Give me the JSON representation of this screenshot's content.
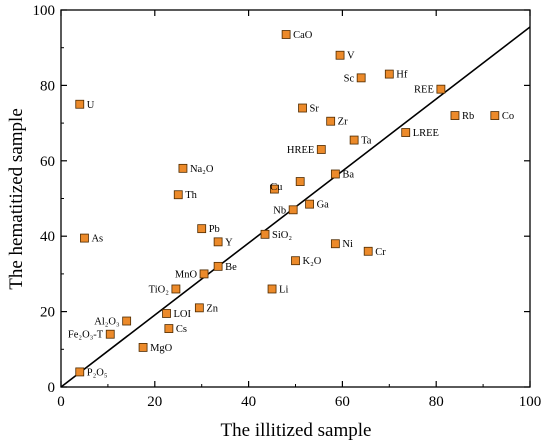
{
  "chart_data": {
    "type": "scatter",
    "xlabel": "The illitized sample",
    "ylabel": "The hematitized sample",
    "xlim": [
      0,
      100
    ],
    "ylim": [
      0,
      100
    ],
    "xticks": [
      0,
      20,
      40,
      60,
      80,
      100
    ],
    "yticks": [
      0,
      20,
      40,
      60,
      80,
      100
    ],
    "grid": false,
    "marker_color": "#ec8a2a",
    "marker_edge": "#4d2a00",
    "reference_line": {
      "from": [
        0,
        0
      ],
      "to": [
        100,
        95.5
      ]
    },
    "points": [
      {
        "name": "CaO",
        "x": 48,
        "y": 93.5,
        "label_pos": "right"
      },
      {
        "name": "V",
        "x": 59.5,
        "y": 88,
        "label_pos": "right"
      },
      {
        "name": "Sc",
        "x": 64,
        "y": 82,
        "label_pos": "left"
      },
      {
        "name": "Hf",
        "x": 70,
        "y": 83,
        "label_pos": "right"
      },
      {
        "name": "REE",
        "x": 81,
        "y": 79,
        "label_pos": "left"
      },
      {
        "name": "U",
        "x": 4,
        "y": 75,
        "label_pos": "right"
      },
      {
        "name": "Sr",
        "x": 51.5,
        "y": 74,
        "label_pos": "right"
      },
      {
        "name": "Rb",
        "x": 84,
        "y": 72,
        "label_pos": "right"
      },
      {
        "name": "Co",
        "x": 92.5,
        "y": 72,
        "label_pos": "right"
      },
      {
        "name": "Zr",
        "x": 57.5,
        "y": 70.5,
        "label_pos": "right"
      },
      {
        "name": "LREE",
        "x": 73.5,
        "y": 67.5,
        "label_pos": "right"
      },
      {
        "name": "Ta",
        "x": 62.5,
        "y": 65.5,
        "label_pos": "right"
      },
      {
        "name": "HREE",
        "x": 55.5,
        "y": 63,
        "label_pos": "left"
      },
      {
        "name": "Na₂O",
        "x": 26,
        "y": 58,
        "label_pos": "right"
      },
      {
        "name": "Ba",
        "x": 58.5,
        "y": 56.5,
        "label_pos": "right"
      },
      {
        "name": "Cu",
        "x": 51,
        "y": 54.5,
        "label_pos": "none"
      },
      {
        "name": "",
        "x": 45.5,
        "y": 52.5,
        "label_pos": "none"
      },
      {
        "name": "Th",
        "x": 25,
        "y": 51,
        "label_pos": "right"
      },
      {
        "name": "Ga",
        "x": 53,
        "y": 48.5,
        "label_pos": "right"
      },
      {
        "name": "Nb",
        "x": 49.5,
        "y": 47,
        "label_pos": "left"
      },
      {
        "name": "Pb",
        "x": 30,
        "y": 42,
        "label_pos": "right"
      },
      {
        "name": "SiO₂",
        "x": 43.5,
        "y": 40.5,
        "label_pos": "right"
      },
      {
        "name": "As",
        "x": 5,
        "y": 39.5,
        "label_pos": "right"
      },
      {
        "name": "Y",
        "x": 33.5,
        "y": 38.5,
        "label_pos": "right"
      },
      {
        "name": "Ni",
        "x": 58.5,
        "y": 38,
        "label_pos": "right"
      },
      {
        "name": "Cr",
        "x": 65.5,
        "y": 36,
        "label_pos": "right"
      },
      {
        "name": "K₂O",
        "x": 50,
        "y": 33.5,
        "label_pos": "right"
      },
      {
        "name": "Be",
        "x": 33.5,
        "y": 32,
        "label_pos": "right"
      },
      {
        "name": "MnO",
        "x": 30.5,
        "y": 30,
        "label_pos": "left"
      },
      {
        "name": "Li",
        "x": 45,
        "y": 26,
        "label_pos": "right"
      },
      {
        "name": "TiO₂",
        "x": 24.5,
        "y": 26,
        "label_pos": "left"
      },
      {
        "name": "Zn",
        "x": 29.5,
        "y": 21,
        "label_pos": "right"
      },
      {
        "name": "LOI",
        "x": 22.5,
        "y": 19.5,
        "label_pos": "right"
      },
      {
        "name": "Al₂O₃",
        "x": 14,
        "y": 17.5,
        "label_pos": "left"
      },
      {
        "name": "Cs",
        "x": 23,
        "y": 15.5,
        "label_pos": "right"
      },
      {
        "name": "Fe₂O₃-T",
        "x": 10.5,
        "y": 14,
        "label_pos": "left"
      },
      {
        "name": "MgO",
        "x": 17.5,
        "y": 10.5,
        "label_pos": "right"
      },
      {
        "name": "P₂O₅",
        "x": 4,
        "y": 4,
        "label_pos": "right"
      }
    ],
    "extra_labels": [
      {
        "name": "Cu",
        "x": 47.2,
        "y": 53.2,
        "anchor": "end"
      }
    ]
  }
}
